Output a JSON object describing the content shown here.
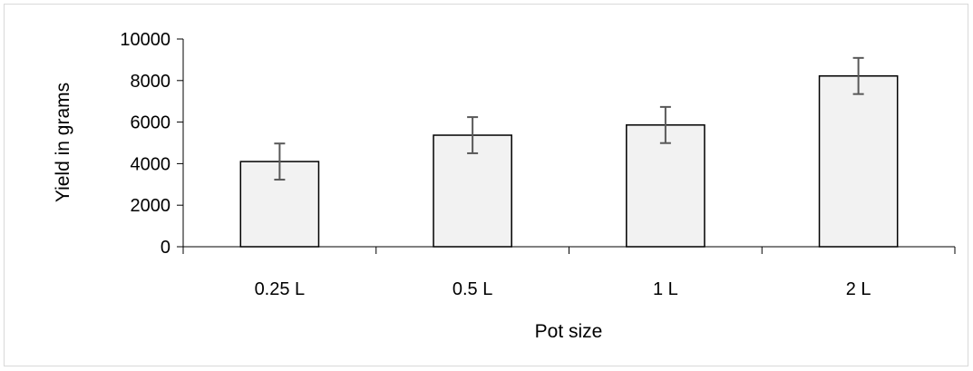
{
  "chart_data": {
    "type": "bar",
    "title": "",
    "xlabel": "Pot size",
    "ylabel": "Yield in grams",
    "categories": [
      "0.25 L",
      "0.5 L",
      "1 L",
      "2 L"
    ],
    "values": [
      4100,
      5370,
      5860,
      8220
    ],
    "error": [
      870,
      870,
      870,
      870
    ],
    "ylim": [
      0,
      10000
    ],
    "yticks": [
      0,
      2000,
      4000,
      6000,
      8000,
      10000
    ],
    "grid": false,
    "legend": "none",
    "colors": {
      "bar_fill": "#f2f2f2",
      "bar_stroke": "#000000",
      "error_bar": "#595959",
      "axis": "#000000"
    }
  }
}
